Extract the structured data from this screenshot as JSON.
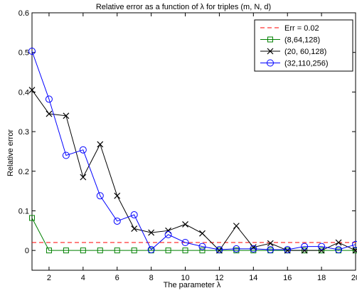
{
  "chart_data": {
    "type": "line",
    "title": "Relative error as a function of λ for triples (m, N, d)",
    "xlabel": "The parameter λ",
    "ylabel": "Relative error",
    "xlim": [
      1,
      20
    ],
    "ylim": [
      -0.05,
      0.6
    ],
    "xticks": [
      2,
      4,
      6,
      8,
      10,
      12,
      14,
      16,
      18,
      20
    ],
    "yticks": [
      0,
      0.1,
      0.2,
      0.3,
      0.4,
      0.5,
      0.6
    ],
    "ytick_labels": [
      "0",
      "0.1",
      "0.2",
      "0.3",
      "0.4",
      "0.5",
      "0.6"
    ],
    "grid": false,
    "legend_position": "top-right",
    "x": [
      1,
      2,
      3,
      4,
      5,
      6,
      7,
      8,
      9,
      10,
      11,
      12,
      13,
      14,
      15,
      16,
      17,
      18,
      19,
      20
    ],
    "series": [
      {
        "name": "Err = 0.02",
        "color": "#ff0000",
        "style": "dashed",
        "marker": "none",
        "values": [
          0.02,
          0.02,
          0.02,
          0.02,
          0.02,
          0.02,
          0.02,
          0.02,
          0.02,
          0.02,
          0.02,
          0.02,
          0.02,
          0.02,
          0.02,
          0.02,
          0.02,
          0.02,
          0.02,
          0.02
        ]
      },
      {
        "name": "(8,64,128)",
        "color": "#008000",
        "style": "solid",
        "marker": "square",
        "values": [
          0.082,
          0.0,
          0.0,
          0.0,
          0.0,
          0.0,
          0.0,
          0.0,
          0.0,
          0.0,
          0.0,
          0.0,
          0.0,
          0.0,
          0.0,
          0.0,
          0.0,
          0.0,
          0.0,
          0.0
        ]
      },
      {
        "name": "(20, 60,128)",
        "color": "#000000",
        "style": "solid",
        "marker": "x",
        "values": [
          0.405,
          0.345,
          0.34,
          0.185,
          0.268,
          0.138,
          0.055,
          0.045,
          0.05,
          0.066,
          0.043,
          0.0,
          0.062,
          0.008,
          0.018,
          0.0,
          0.0,
          0.0,
          0.02,
          0.0
        ]
      },
      {
        "name": "(32,110,256)",
        "color": "#0000ff",
        "style": "solid",
        "marker": "circle",
        "values": [
          0.503,
          0.382,
          0.24,
          0.254,
          0.138,
          0.074,
          0.09,
          0.002,
          0.04,
          0.02,
          0.01,
          0.002,
          0.004,
          0.004,
          0.002,
          0.002,
          0.01,
          0.01,
          0.002,
          0.015
        ]
      }
    ]
  }
}
